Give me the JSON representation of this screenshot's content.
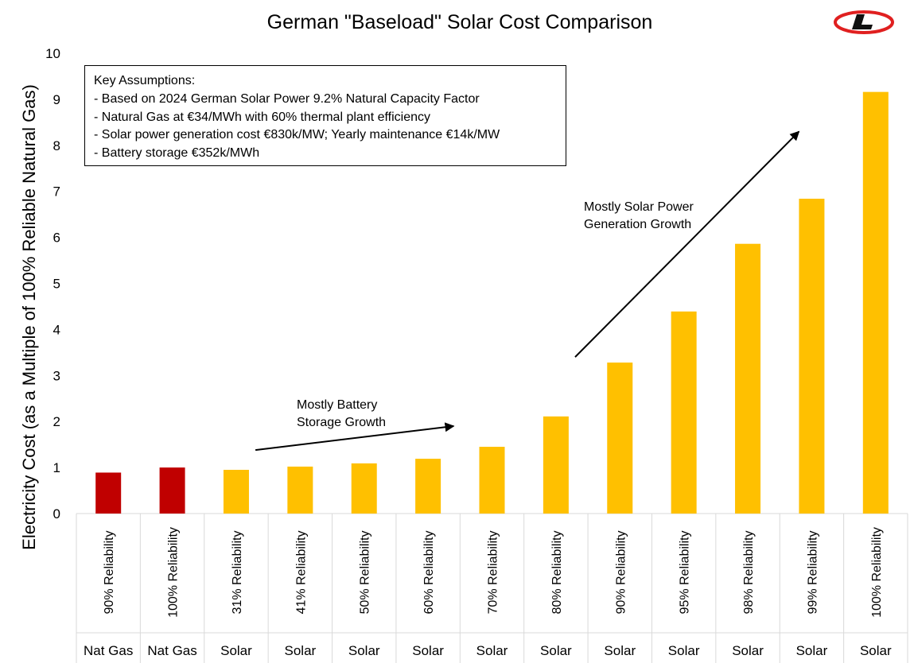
{
  "chart_data": {
    "type": "bar",
    "title": "German \"Baseload\" Solar Cost Comparison",
    "ylabel": "Electricity Cost (as a Multiple of 100% Reliable Natural Gas)",
    "xlabel": "",
    "ylim": [
      0,
      10
    ],
    "yticks": [
      0,
      1,
      2,
      3,
      4,
      5,
      6,
      7,
      8,
      9,
      10
    ],
    "grid": false,
    "categories": [
      {
        "reliability": "90% Reliability",
        "source": "Nat Gas"
      },
      {
        "reliability": "100% Reliability",
        "source": "Nat Gas"
      },
      {
        "reliability": "31% Reliability",
        "source": "Solar"
      },
      {
        "reliability": "41% Reliability",
        "source": "Solar"
      },
      {
        "reliability": "50% Reliability",
        "source": "Solar"
      },
      {
        "reliability": "60% Reliability",
        "source": "Solar"
      },
      {
        "reliability": "70% Reliability",
        "source": "Solar"
      },
      {
        "reliability": "80% Reliability",
        "source": "Solar"
      },
      {
        "reliability": "90% Reliability",
        "source": "Solar"
      },
      {
        "reliability": "95% Reliability",
        "source": "Solar"
      },
      {
        "reliability": "98% Reliability",
        "source": "Solar"
      },
      {
        "reliability": "99% Reliability",
        "source": "Solar"
      },
      {
        "reliability": "100% Reliability",
        "source": "Solar"
      }
    ],
    "values": [
      0.89,
      1.0,
      0.95,
      1.02,
      1.09,
      1.19,
      1.45,
      2.11,
      3.28,
      4.39,
      5.86,
      6.84,
      9.16
    ],
    "colors": {
      "Nat Gas": "#c00000",
      "Solar": "#ffc000"
    },
    "annotations": [
      {
        "lines": [
          "Mostly Battery",
          "Storage Growth"
        ],
        "arrow_from_x": 2.8,
        "arrow_from_y": 1.38,
        "arrow_to_x": 5.9,
        "arrow_to_y": 1.9
      },
      {
        "lines": [
          "Mostly Solar Power",
          "Generation Growth"
        ],
        "arrow_from_x": 7.8,
        "arrow_from_y": 3.4,
        "arrow_to_x": 11.3,
        "arrow_to_y": 8.3
      }
    ]
  },
  "assumptions": {
    "heading": "Key Assumptions:",
    "items": [
      "- Based on 2024 German Solar Power 9.2% Natural Capacity Factor",
      "- Natural Gas at €34/MWh with 60% thermal plant efficiency",
      "- Solar power generation cost €830k/MW; Yearly maintenance €14k/MW",
      "- Battery storage €352k/MWh"
    ]
  },
  "logo": {
    "name": "L-logo",
    "letter": "L",
    "color": "#e02020"
  }
}
